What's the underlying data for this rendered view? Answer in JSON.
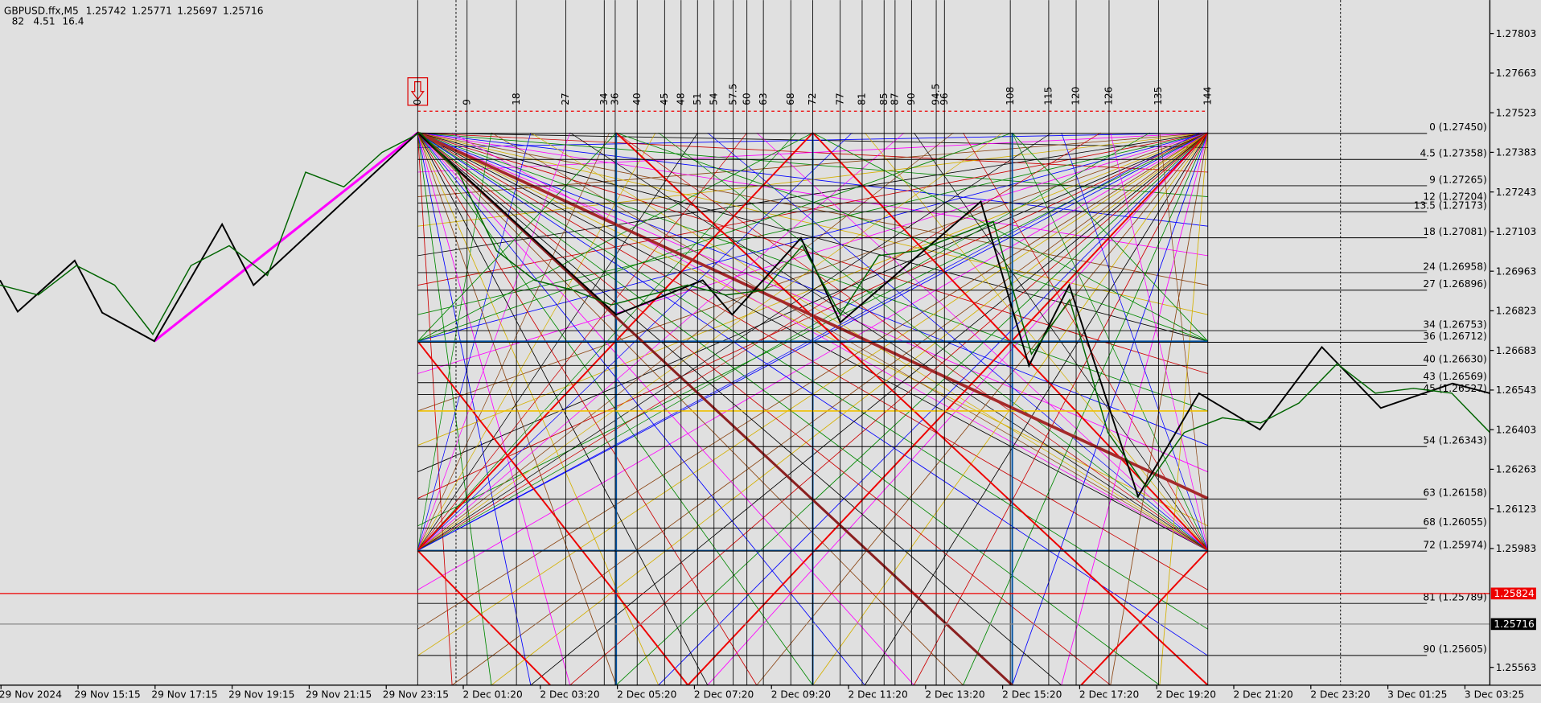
{
  "header": {
    "symbol": "GBPUSD.ffx,M5",
    "ohlc": [
      1.25742,
      1.25771,
      1.25697,
      1.25716
    ],
    "indicators": [
      82,
      4.51,
      16.4
    ]
  },
  "price_axis": {
    "ylim": [
      1.255,
      1.27921
    ],
    "ticks": [
      1.27803,
      1.27663,
      1.27523,
      1.27383,
      1.27243,
      1.27103,
      1.26963,
      1.26823,
      1.26683,
      1.26543,
      1.26403,
      1.26263,
      1.26123,
      1.25983,
      1.25563
    ]
  },
  "current_prices": {
    "ask": 1.25824,
    "bid": 1.25716
  },
  "time_axis": {
    "labels": [
      "29 Nov 2024",
      "29 Nov 15:15",
      "29 Nov 17:15",
      "29 Nov 19:15",
      "29 Nov 21:15",
      "29 Nov 23:15",
      "2 Dec 01:20",
      "2 Dec 03:20",
      "2 Dec 05:20",
      "2 Dec 07:20",
      "2 Dec 09:20",
      "2 Dec 11:20",
      "2 Dec 13:20",
      "2 Dec 15:20",
      "2 Dec 17:20",
      "2 Dec 19:20",
      "2 Dec 21:20",
      "2 Dec 23:20",
      "3 Dec 01:25",
      "3 Dec 03:25"
    ]
  },
  "time_levels": [
    0,
    9,
    18,
    27,
    34,
    36,
    40,
    45,
    48,
    51,
    54,
    57.5,
    60,
    63,
    68,
    72,
    77,
    81,
    85,
    87,
    90,
    94.5,
    96,
    108,
    115,
    120,
    126,
    135,
    144
  ],
  "levels": [
    {
      "label": "0 (1.27450)",
      "price": 1.2745
    },
    {
      "label": "4.5 (1.27358)",
      "price": 1.27358
    },
    {
      "label": "9 (1.27265)",
      "price": 1.27265
    },
    {
      "label": "12 (1.27204)",
      "price": 1.27204
    },
    {
      "label": "13.5 (1.27173)",
      "price": 1.27173
    },
    {
      "label": "18 (1.27081)",
      "price": 1.27081
    },
    {
      "label": "24 (1.26958)",
      "price": 1.26958
    },
    {
      "label": "27 (1.26896)",
      "price": 1.26896
    },
    {
      "label": "34 (1.26753)",
      "price": 1.26753
    },
    {
      "label": "36 (1.26712)",
      "price": 1.26712
    },
    {
      "label": "40 (1.26630)",
      "price": 1.2663
    },
    {
      "label": "43 (1.26569)",
      "price": 1.26569
    },
    {
      "label": "45 (1.26527)",
      "price": 1.26527
    },
    {
      "label": "54 (1.26343)",
      "price": 1.26343
    },
    {
      "label": "63 (1.26158)",
      "price": 1.26158
    },
    {
      "label": "68 (1.26055)",
      "price": 1.26055
    },
    {
      "label": "72 (1.25974)",
      "price": 1.25974
    },
    {
      "label": "81 (1.25789)",
      "price": 1.25789
    },
    {
      "label": "90 (1.25605)",
      "price": 1.25605
    }
  ],
  "price_series": [
    1.26914,
    1.26879,
    1.26983,
    1.26914,
    1.2674,
    1.26983,
    1.27053,
    1.26948,
    1.27313,
    1.27261,
    1.27383,
    1.27452,
    1.27313,
    1.27035,
    1.26931,
    1.26896,
    1.26844,
    1.26879,
    1.26914,
    1.26879,
    1.26896,
    1.27053,
    1.26809,
    1.27018,
    1.27035,
    1.27087,
    1.27139,
    1.2667,
    1.26862,
    1.26393,
    1.26202,
    1.26393,
    1.26445,
    1.26427,
    1.26497,
    1.26636,
    1.26532,
    1.26549,
    1.26532,
    1.26393
  ]
}
